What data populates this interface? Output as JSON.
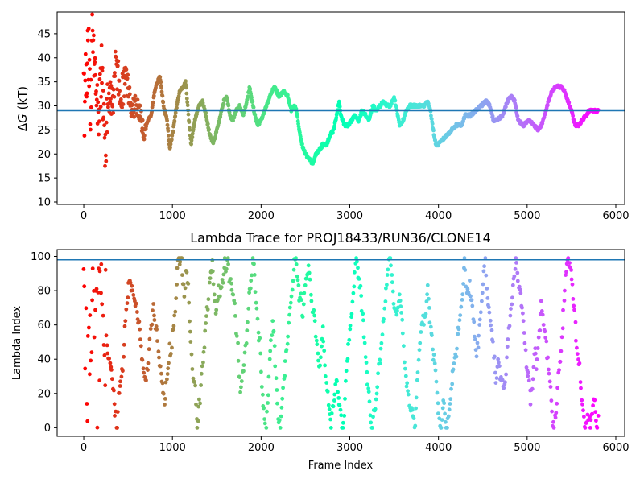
{
  "chart_data": [
    {
      "type": "scatter",
      "title": "",
      "xlabel": "",
      "ylabel_italic": "G",
      "ylabel_prefix": "Δ",
      "ylabel_suffix": " (kT)",
      "xlim": [
        -300,
        6100
      ],
      "ylim": [
        9.5,
        49.5
      ],
      "xticks": [
        0,
        1000,
        2000,
        3000,
        4000,
        5000,
        6000
      ],
      "yticks": [
        10,
        15,
        20,
        25,
        30,
        35,
        40,
        45
      ],
      "hline": 29,
      "hline_color": "#1f77b4",
      "colormap": "rainbow (reversed: red at frame 0, violet at end)",
      "frame_max": 5800,
      "trace": [
        [
          0,
          44
        ],
        [
          10,
          20
        ],
        [
          20,
          40
        ],
        [
          30,
          36
        ],
        [
          50,
          42
        ],
        [
          80,
          30
        ],
        [
          100,
          45
        ],
        [
          140,
          33
        ],
        [
          170,
          26
        ],
        [
          200,
          38
        ],
        [
          240,
          20
        ],
        [
          280,
          33
        ],
        [
          320,
          30
        ],
        [
          360,
          39
        ],
        [
          420,
          33
        ],
        [
          480,
          35
        ],
        [
          540,
          30
        ],
        [
          600,
          30
        ],
        [
          640,
          28
        ],
        [
          680,
          24
        ],
        [
          720,
          27
        ],
        [
          760,
          28
        ],
        [
          800,
          33
        ],
        [
          830,
          35
        ],
        [
          860,
          36
        ],
        [
          900,
          30
        ],
        [
          940,
          27
        ],
        [
          970,
          21
        ],
        [
          1000,
          24
        ],
        [
          1040,
          29
        ],
        [
          1080,
          33
        ],
        [
          1120,
          34
        ],
        [
          1150,
          35
        ],
        [
          1180,
          28
        ],
        [
          1210,
          22
        ],
        [
          1250,
          27
        ],
        [
          1300,
          30
        ],
        [
          1340,
          31
        ],
        [
          1380,
          28
        ],
        [
          1420,
          24
        ],
        [
          1460,
          22
        ],
        [
          1500,
          25
        ],
        [
          1540,
          28
        ],
        [
          1580,
          31
        ],
        [
          1610,
          32
        ],
        [
          1650,
          28
        ],
        [
          1680,
          27
        ],
        [
          1720,
          29
        ],
        [
          1760,
          30
        ],
        [
          1800,
          28
        ],
        [
          1840,
          31
        ],
        [
          1870,
          34
        ],
        [
          1900,
          31
        ],
        [
          1930,
          28
        ],
        [
          1960,
          26
        ],
        [
          2000,
          27
        ],
        [
          2040,
          29
        ],
        [
          2080,
          31
        ],
        [
          2120,
          33
        ],
        [
          2150,
          34
        ],
        [
          2200,
          32
        ],
        [
          2260,
          33
        ],
        [
          2300,
          32
        ],
        [
          2340,
          29
        ],
        [
          2380,
          30
        ],
        [
          2400,
          29
        ],
        [
          2430,
          25
        ],
        [
          2460,
          22
        ],
        [
          2500,
          20
        ],
        [
          2540,
          19
        ],
        [
          2580,
          18
        ],
        [
          2620,
          20
        ],
        [
          2660,
          21
        ],
        [
          2700,
          22
        ],
        [
          2740,
          22
        ],
        [
          2780,
          24
        ],
        [
          2820,
          25
        ],
        [
          2860,
          29
        ],
        [
          2880,
          31
        ],
        [
          2900,
          28
        ],
        [
          2940,
          26
        ],
        [
          2980,
          26
        ],
        [
          3020,
          27
        ],
        [
          3060,
          28
        ],
        [
          3100,
          27
        ],
        [
          3140,
          29
        ],
        [
          3180,
          28
        ],
        [
          3220,
          27
        ],
        [
          3260,
          30
        ],
        [
          3300,
          29
        ],
        [
          3340,
          30
        ],
        [
          3380,
          31
        ],
        [
          3420,
          30
        ],
        [
          3460,
          30
        ],
        [
          3500,
          32
        ],
        [
          3530,
          29
        ],
        [
          3560,
          26
        ],
        [
          3600,
          27
        ],
        [
          3640,
          29
        ],
        [
          3680,
          30
        ],
        [
          3720,
          30
        ],
        [
          3780,
          30
        ],
        [
          3840,
          30
        ],
        [
          3880,
          31
        ],
        [
          3910,
          29
        ],
        [
          3940,
          25
        ],
        [
          3970,
          22
        ],
        [
          4000,
          22
        ],
        [
          4050,
          23
        ],
        [
          4100,
          24
        ],
        [
          4150,
          25
        ],
        [
          4200,
          26
        ],
        [
          4260,
          26
        ],
        [
          4300,
          28
        ],
        [
          4360,
          28
        ],
        [
          4420,
          29
        ],
        [
          4480,
          30
        ],
        [
          4540,
          31
        ],
        [
          4580,
          30
        ],
        [
          4620,
          27
        ],
        [
          4660,
          27
        ],
        [
          4720,
          28
        ],
        [
          4780,
          31
        ],
        [
          4820,
          32
        ],
        [
          4860,
          31
        ],
        [
          4900,
          27
        ],
        [
          4960,
          26
        ],
        [
          5020,
          27
        ],
        [
          5080,
          26
        ],
        [
          5120,
          25
        ],
        [
          5160,
          26
        ],
        [
          5200,
          28
        ],
        [
          5240,
          31
        ],
        [
          5280,
          33
        ],
        [
          5320,
          34
        ],
        [
          5380,
          34
        ],
        [
          5420,
          33
        ],
        [
          5460,
          31
        ],
        [
          5500,
          29
        ],
        [
          5540,
          26
        ],
        [
          5580,
          26
        ],
        [
          5620,
          27
        ],
        [
          5660,
          28
        ],
        [
          5700,
          29
        ],
        [
          5760,
          29
        ]
      ]
    },
    {
      "type": "scatter",
      "title": "Lambda Trace for PROJ18433/RUN36/CLONE14",
      "xlabel": "Frame Index",
      "ylabel": "Lambda Index",
      "xlim": [
        -300,
        6100
      ],
      "ylim": [
        -5,
        104
      ],
      "xticks": [
        0,
        1000,
        2000,
        3000,
        4000,
        5000,
        6000
      ],
      "yticks": [
        0,
        20,
        40,
        60,
        80,
        100
      ],
      "hline": 98,
      "hline_color": "#1f77b4",
      "colormap": "rainbow (reversed: red at frame 0, violet at end)",
      "frame_max": 5800,
      "lambda_min": 0,
      "lambda_max": 99,
      "frame_step": 8
    }
  ]
}
